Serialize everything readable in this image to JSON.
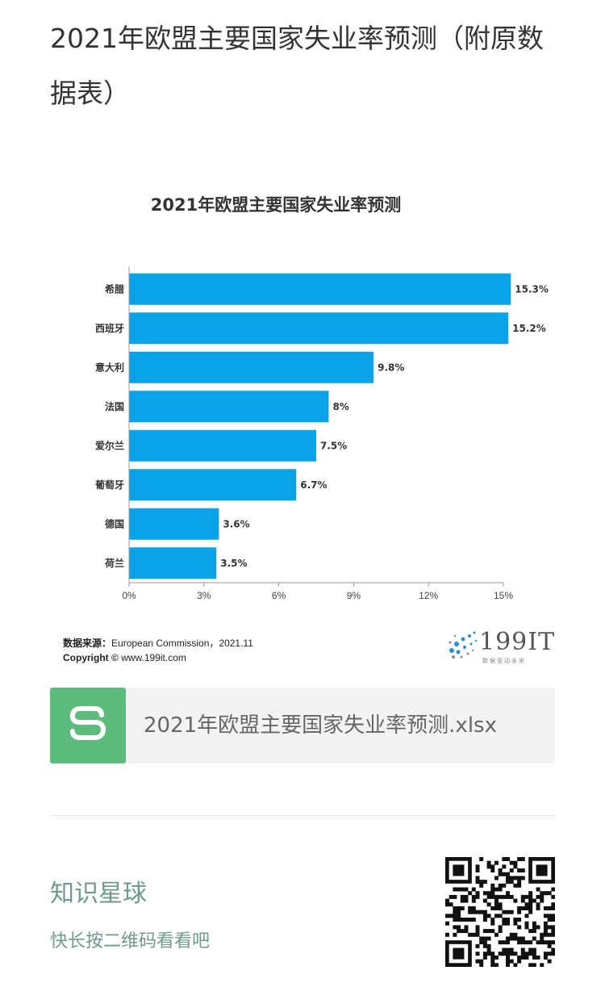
{
  "article": {
    "title": "2021年欧盟主要国家失业率预测（附原数据表）"
  },
  "chart_data": {
    "type": "bar",
    "orientation": "horizontal",
    "title": "2021年欧盟主要国家失业率预测",
    "categories": [
      "希腊",
      "西班牙",
      "意大利",
      "法国",
      "爱尔兰",
      "葡萄牙",
      "德国",
      "荷兰"
    ],
    "values": [
      15.3,
      15.2,
      9.8,
      8,
      7.5,
      6.7,
      3.6,
      3.5
    ],
    "value_labels": [
      "15.3%",
      "15.2%",
      "9.8%",
      "8%",
      "7.5%",
      "6.7%",
      "3.6%",
      "3.5%"
    ],
    "xlim": [
      0,
      15
    ],
    "x_ticks": [
      "0%",
      "3%",
      "6%",
      "9%",
      "12%",
      "15%"
    ],
    "x_tick_values": [
      0,
      3,
      6,
      9,
      12,
      15
    ],
    "bar_color": "#0aa3e8",
    "grid": false
  },
  "source": {
    "label": "数据来源：",
    "text": "European Commission，2021.11",
    "copyright_label": "Copyright ©",
    "copyright_text": "www.199it.com"
  },
  "brand": {
    "name": "199IT",
    "tagline": "数据驱动未来"
  },
  "attachment": {
    "file_name": "2021年欧盟主要国家失业率预测.xlsx",
    "icon_color": "#5dbb7e"
  },
  "planet": {
    "title": "知识星球",
    "subtitle": "快长按二维码看看吧"
  },
  "colors": {
    "accent": "#6f9a8c",
    "bar": "#0aa3e8"
  }
}
